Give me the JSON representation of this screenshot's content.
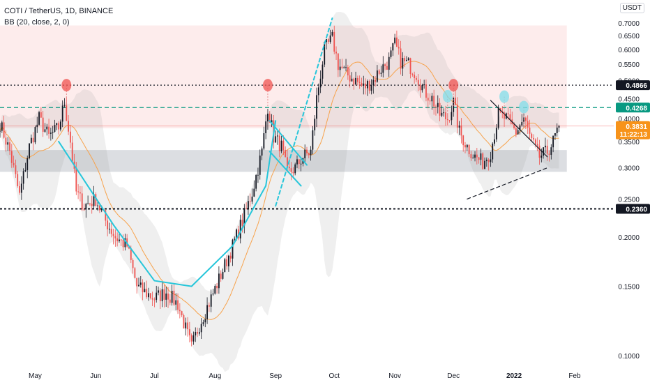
{
  "legend": {
    "symbol": "COTI / TetherUS, 1D, BINANCE",
    "indicator": "BB (20, close, 2, 0)"
  },
  "axis_unit": "USDT",
  "colors": {
    "up": "#131722",
    "down": "#ef5350",
    "bb_basis": "#f7a24b",
    "bb_fill": "#9e9e9e",
    "resistance_zone": "#f8c8c8",
    "support_zone": "#b2b5be",
    "pattern_line": "#26c6da",
    "marker_red": "#ef5350",
    "marker_cyan": "#80deea",
    "price_tag": "#f7931a",
    "level_tag": "#131722",
    "teal_tag": "#089981"
  },
  "chart_data": {
    "type": "candlestick",
    "y_scale": "log",
    "ylim": [
      0.095,
      0.72
    ],
    "y_ticks": [
      "0.7000",
      "0.6500",
      "0.6000",
      "0.5500",
      "0.5000",
      "0.4500",
      "0.4000",
      "0.3500",
      "0.3000",
      "0.2500",
      "0.2000",
      "0.1500",
      "0.1000"
    ],
    "x_ticks": [
      "May",
      "Jun",
      "Jul",
      "Aug",
      "Sep",
      "Oct",
      "Nov",
      "Dec",
      "2022",
      "Feb"
    ],
    "x_start": "2021-04-13",
    "x_end": "2022-02-21",
    "levels": [
      {
        "value": 0.4866,
        "label": "0.4866",
        "style": "dotted"
      },
      {
        "value": 0.4268,
        "label": "0.4268",
        "style": "dashed"
      },
      {
        "value": 0.236,
        "label": "0.2360",
        "style": "dotted-bold"
      }
    ],
    "current_price": {
      "value": 0.3831,
      "label": "0.3831",
      "countdown": "11:22:13"
    },
    "zones": [
      {
        "name": "resistance",
        "from": "2021-04-13",
        "to": "2022-01-28",
        "low": 0.378,
        "high": 0.69
      },
      {
        "name": "support",
        "from": "2021-04-13",
        "to": "2022-01-28",
        "low": 0.293,
        "high": 0.333
      }
    ],
    "trend_lines": [
      {
        "name": "cup",
        "points": [
          [
            "2021-05-13",
            0.35
          ],
          [
            "2021-06-10",
            0.215
          ],
          [
            "2021-07-01",
            0.155
          ],
          [
            "2021-07-20",
            0.15
          ],
          [
            "2021-08-10",
            0.19
          ],
          [
            "2021-08-27",
            0.27
          ],
          [
            "2021-09-01",
            0.395
          ]
        ]
      },
      {
        "name": "flag-upper",
        "points": [
          [
            "2021-08-29",
            0.395
          ],
          [
            "2021-09-17",
            0.305
          ]
        ]
      },
      {
        "name": "flag-lower",
        "points": [
          [
            "2021-08-29",
            0.33
          ],
          [
            "2021-09-14",
            0.27
          ]
        ]
      },
      {
        "name": "breakout",
        "points": [
          [
            "2021-09-01",
            0.24
          ],
          [
            "2021-09-30",
            0.72
          ]
        ],
        "dashed": true
      },
      {
        "name": "rising-support",
        "points": [
          [
            "2021-12-08",
            0.25
          ],
          [
            "2022-01-18",
            0.3
          ]
        ],
        "dashed": true,
        "black": true
      },
      {
        "name": "wedge",
        "points": [
          [
            "2021-12-20",
            0.445
          ],
          [
            "2022-01-18",
            0.32
          ]
        ],
        "black": true
      }
    ],
    "markers": [
      {
        "date": "2021-05-17",
        "value": 0.4866,
        "color": "red"
      },
      {
        "date": "2021-08-28",
        "value": 0.4866,
        "color": "red"
      },
      {
        "date": "2021-12-01",
        "value": 0.4866,
        "color": "red"
      },
      {
        "date": "2021-11-28",
        "value": 0.456,
        "color": "cyan"
      },
      {
        "date": "2021-12-27",
        "value": 0.455,
        "color": "cyan"
      },
      {
        "date": "2022-01-06",
        "value": 0.428,
        "color": "cyan"
      }
    ],
    "anchors": [
      [
        "2021-04-13",
        0.39
      ],
      [
        "2021-04-18",
        0.33
      ],
      [
        "2021-04-23",
        0.255
      ],
      [
        "2021-04-28",
        0.34
      ],
      [
        "2021-05-03",
        0.4
      ],
      [
        "2021-05-08",
        0.36
      ],
      [
        "2021-05-13",
        0.38
      ],
      [
        "2021-05-16",
        0.44
      ],
      [
        "2021-05-19",
        0.35
      ],
      [
        "2021-05-22",
        0.26
      ],
      [
        "2021-05-26",
        0.24
      ],
      [
        "2021-06-01",
        0.25
      ],
      [
        "2021-06-06",
        0.22
      ],
      [
        "2021-06-11",
        0.2
      ],
      [
        "2021-06-17",
        0.19
      ],
      [
        "2021-06-22",
        0.15
      ],
      [
        "2021-06-26",
        0.145
      ],
      [
        "2021-07-01",
        0.14
      ],
      [
        "2021-07-07",
        0.145
      ],
      [
        "2021-07-13",
        0.135
      ],
      [
        "2021-07-20",
        0.105
      ],
      [
        "2021-07-24",
        0.12
      ],
      [
        "2021-07-30",
        0.14
      ],
      [
        "2021-08-05",
        0.165
      ],
      [
        "2021-08-10",
        0.19
      ],
      [
        "2021-08-15",
        0.22
      ],
      [
        "2021-08-20",
        0.26
      ],
      [
        "2021-08-25",
        0.33
      ],
      [
        "2021-08-28",
        0.43
      ],
      [
        "2021-08-31",
        0.36
      ],
      [
        "2021-09-04",
        0.34
      ],
      [
        "2021-09-07",
        0.29
      ],
      [
        "2021-09-11",
        0.3
      ],
      [
        "2021-09-15",
        0.32
      ],
      [
        "2021-09-19",
        0.33
      ],
      [
        "2021-09-22",
        0.45
      ],
      [
        "2021-09-26",
        0.6
      ],
      [
        "2021-09-30",
        0.64
      ],
      [
        "2021-10-03",
        0.55
      ],
      [
        "2021-10-07",
        0.52
      ],
      [
        "2021-10-12",
        0.5
      ],
      [
        "2021-10-16",
        0.48
      ],
      [
        "2021-10-21",
        0.5
      ],
      [
        "2021-10-24",
        0.53
      ],
      [
        "2021-10-29",
        0.56
      ],
      [
        "2021-11-01",
        0.62
      ],
      [
        "2021-11-04",
        0.56
      ],
      [
        "2021-11-08",
        0.55
      ],
      [
        "2021-11-12",
        0.52
      ],
      [
        "2021-11-16",
        0.47
      ],
      [
        "2021-11-20",
        0.45
      ],
      [
        "2021-11-24",
        0.41
      ],
      [
        "2021-11-28",
        0.4
      ],
      [
        "2021-12-01",
        0.44
      ],
      [
        "2021-12-04",
        0.37
      ],
      [
        "2021-12-08",
        0.34
      ],
      [
        "2021-12-12",
        0.32
      ],
      [
        "2021-12-16",
        0.31
      ],
      [
        "2021-12-20",
        0.33
      ],
      [
        "2021-12-24",
        0.41
      ],
      [
        "2021-12-28",
        0.4
      ],
      [
        "2022-01-02",
        0.37
      ],
      [
        "2022-01-06",
        0.4
      ],
      [
        "2022-01-10",
        0.35
      ],
      [
        "2022-01-14",
        0.32
      ],
      [
        "2022-01-18",
        0.33
      ],
      [
        "2022-01-21",
        0.35
      ],
      [
        "2022-01-24",
        0.3831
      ]
    ]
  }
}
